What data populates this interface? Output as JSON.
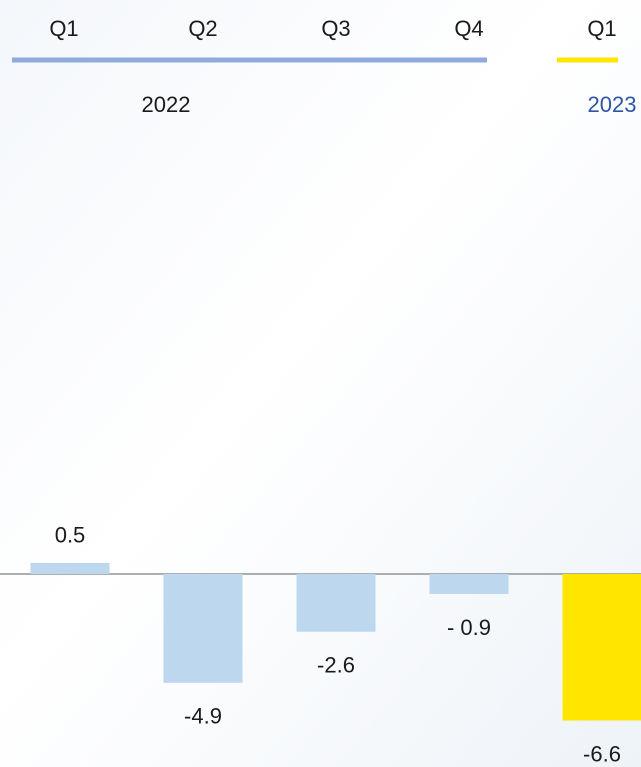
{
  "chart_data": {
    "type": "bar",
    "groups": [
      {
        "name": "2022",
        "categories": [
          "Q1",
          "Q2",
          "Q3",
          "Q4"
        ],
        "bar_color": "#bdd7ee",
        "line_color": "#8faadc",
        "label_color": "#1a1a1a"
      },
      {
        "name": "2023",
        "categories": [
          "Q1"
        ],
        "bar_color": "#ffe600",
        "line_color": "#ffe600",
        "label_color": "#2f55a4"
      }
    ],
    "values": [
      0.5,
      -4.9,
      -2.6,
      -0.9,
      -6.6
    ],
    "value_labels": [
      "0.5",
      "-4.9",
      "-2.6",
      "- 0.9",
      "-6.6"
    ]
  }
}
